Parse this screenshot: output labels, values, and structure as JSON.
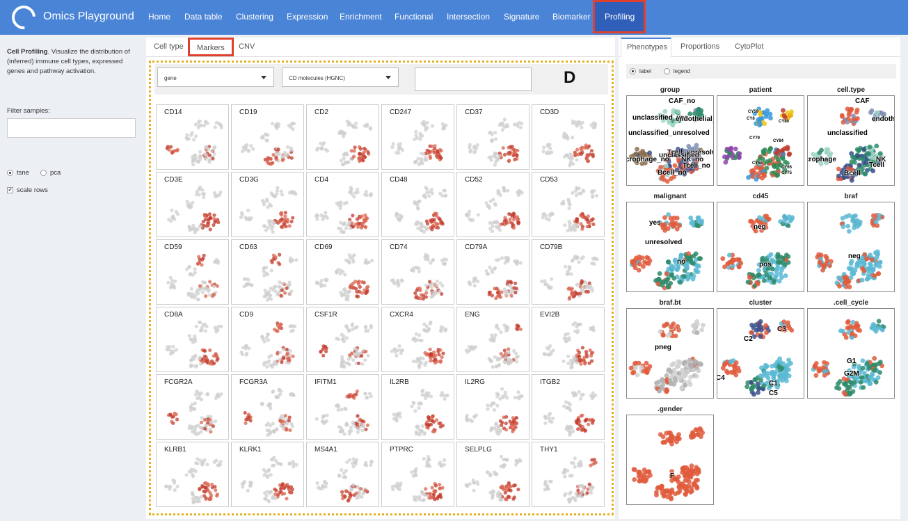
{
  "app": {
    "title": "Omics Playground",
    "logo_icon": "ring-logo-icon"
  },
  "nav": {
    "items": [
      "Home",
      "Data table",
      "Clustering",
      "Expression",
      "Enrichment",
      "Functional",
      "Intersection",
      "Signature",
      "Biomarker"
    ],
    "active": "Profiling"
  },
  "sidebar": {
    "desc_bold": "Cell Profiling",
    "desc_rest": ". Visualize the distribution of (inferred) immune cell types, expressed genes and pathway activation.",
    "filter_label": "Filter samples:",
    "filter_value": "",
    "layout_options": [
      "tsne",
      "pca"
    ],
    "layout_selected": "tsne",
    "scale_rows_label": "scale rows",
    "scale_rows_checked": true
  },
  "main": {
    "tabs": [
      "Cell type",
      "Markers",
      "CNV"
    ],
    "active_tab": "Markers",
    "select1": "gene",
    "select2": "CD molecules (HGNC)",
    "panel_letter": "D",
    "markers": [
      "CD14",
      "CD19",
      "CD2",
      "CD247",
      "CD37",
      "CD3D",
      "CD3E",
      "CD3G",
      "CD4",
      "CD48",
      "CD52",
      "CD53",
      "CD59",
      "CD63",
      "CD69",
      "CD74",
      "CD79A",
      "CD79B",
      "CD8A",
      "CD9",
      "CSF1R",
      "CXCR4",
      "ENG",
      "EVI2B",
      "FCGR2A",
      "FCGR3A",
      "IFITM1",
      "IL2RB",
      "IL2RG",
      "ITGB2",
      "KLRB1",
      "KLRK1",
      "MS4A1",
      "PTPRC",
      "SELPLG",
      "THY1"
    ]
  },
  "right": {
    "tabs": [
      "Phenotypes",
      "Proportions",
      "CytoPlot"
    ],
    "active_tab": "Phenotypes",
    "radio_label": "label",
    "radio_legend": "legend",
    "phenotypes": [
      {
        "title": "group",
        "labels": [
          "CAF_no",
          "unclassified_yes",
          "endothelial_",
          "unclassified_unresolved",
          "Tcell_unresolv",
          "unclassified_",
          "crophage_no",
          "NK_no",
          "Tcell_no",
          "Bcell_no"
        ]
      },
      {
        "title": "patient",
        "labels": [
          "CY59",
          "CY8",
          "CY80",
          "CY79",
          "CY84",
          "CY58",
          "CY65",
          "CY75"
        ]
      },
      {
        "title": "cell.type",
        "labels": [
          "CAF",
          "endotheli",
          "unclassified",
          "crophage",
          "NK",
          "Tcell",
          "Bcell"
        ]
      },
      {
        "title": "malignant",
        "labels": [
          "yes",
          "unresolved",
          "no"
        ]
      },
      {
        "title": "cd45",
        "labels": [
          "neg",
          "pos"
        ]
      },
      {
        "title": "braf",
        "labels": [
          "neg"
        ]
      },
      {
        "title": "braf.bt",
        "labels": [
          "pneg"
        ]
      },
      {
        "title": "cluster",
        "labels": [
          "C3",
          "C2",
          "C4",
          "C1",
          "C5"
        ]
      },
      {
        "title": ".cell_cycle",
        "labels": [
          "G1",
          "G2M"
        ]
      },
      {
        "title": ".gender",
        "labels": [
          "F"
        ]
      }
    ]
  },
  "colors": {
    "navbar": "#4a84d6",
    "highlight": "#e0402e",
    "marker_red": "#c0392b",
    "dashed": "#e6b022"
  }
}
